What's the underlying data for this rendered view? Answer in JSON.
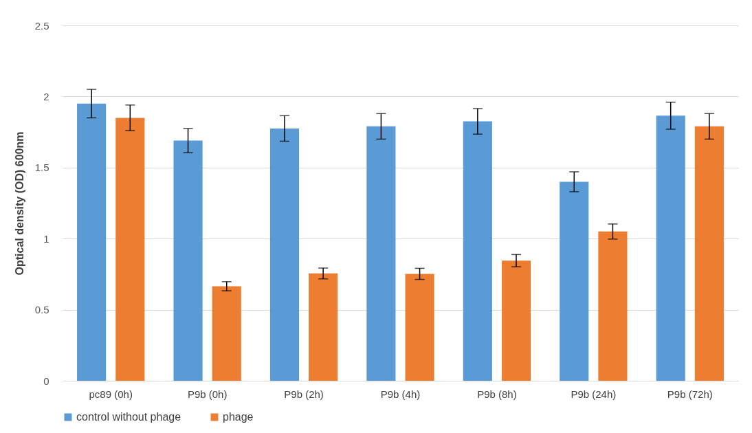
{
  "chart_data": {
    "type": "bar",
    "ylabel": "Optical density (OD) 600nm",
    "categories": [
      "pc89 (0h)",
      "P9b (0h)",
      "P9b (2h)",
      "P9b (4h)",
      "P9b (8h)",
      "P9b (24h)",
      "P9b (72h)"
    ],
    "series": [
      {
        "name": "control without phage",
        "color": "#5b9bd5",
        "values": [
          1.95,
          1.69,
          1.775,
          1.79,
          1.825,
          1.4,
          1.865
        ],
        "errors": [
          0.1,
          0.085,
          0.09,
          0.09,
          0.09,
          0.07,
          0.095
        ]
      },
      {
        "name": "phage",
        "color": "#ed7d31",
        "values": [
          1.85,
          0.665,
          0.755,
          0.752,
          0.845,
          1.05,
          1.79
        ],
        "errors": [
          0.09,
          0.032,
          0.038,
          0.039,
          0.043,
          0.053,
          0.09
        ]
      }
    ],
    "ylim": [
      0,
      2.5
    ],
    "yticks": [
      0,
      0.5,
      1,
      1.5,
      2,
      2.5
    ],
    "grid": "y",
    "legend": "bottom"
  }
}
